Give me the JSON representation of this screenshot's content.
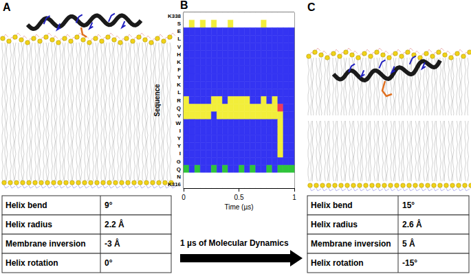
{
  "panels": [
    {
      "label": "A",
      "table": [
        [
          "Helix bend",
          "9°"
        ],
        [
          "Helix radius",
          "2.2 Å"
        ],
        [
          "Membrane inversion",
          "-3 Å"
        ],
        [
          "Helix rotation",
          "0°"
        ]
      ]
    },
    {
      "label": "C",
      "table": [
        [
          "Helix bend",
          "15°"
        ],
        [
          "Helix radius",
          "2.6 Å"
        ],
        [
          "Membrane inversion",
          "5 Å"
        ],
        [
          "Helix rotation",
          "-15°"
        ]
      ]
    }
  ],
  "arrow_text": "1 µs of Molecular Dynamics",
  "chart_data": {
    "type": "heatmap",
    "panel_label": "B",
    "x_label": "Time (µs)",
    "y_label": "Sequence",
    "categories": [
      "K338",
      "S",
      "E",
      "L",
      "V",
      "H",
      "K",
      "F",
      "Y",
      "K",
      "L",
      "R",
      "Q",
      "V",
      "W",
      "I",
      "Y",
      "Y",
      "I",
      "G",
      "Q",
      "N",
      "K316"
    ],
    "bins": [
      0,
      0.05,
      0.1,
      0.15,
      0.2,
      0.25,
      0.3,
      0.35,
      0.4,
      0.45,
      0.5,
      0.55,
      0.6,
      0.65,
      0.7,
      0.75,
      0.8,
      0.85,
      0.9,
      0.95,
      1
    ],
    "colors": [
      "#ffffff",
      "#3434f2",
      "#f2ee3a",
      "#2fc43a",
      "#ee3a5a"
    ],
    "cells": [
      [
        0,
        0,
        0,
        0,
        0,
        0,
        0,
        0,
        0,
        0,
        0,
        0,
        0,
        0,
        0,
        0,
        0,
        0,
        0,
        0
      ],
      [
        0,
        2,
        0,
        2,
        0,
        2,
        0,
        0,
        2,
        0,
        0,
        0,
        0,
        0,
        2,
        0,
        0,
        0,
        0,
        0
      ],
      [
        1,
        1,
        1,
        1,
        1,
        1,
        1,
        1,
        1,
        1,
        1,
        1,
        1,
        1,
        1,
        1,
        1,
        1,
        1,
        1
      ],
      [
        1,
        1,
        1,
        1,
        1,
        1,
        1,
        1,
        1,
        1,
        1,
        1,
        1,
        1,
        1,
        1,
        1,
        1,
        1,
        1
      ],
      [
        1,
        1,
        1,
        1,
        1,
        1,
        1,
        1,
        1,
        1,
        1,
        1,
        1,
        1,
        1,
        1,
        1,
        1,
        1,
        1
      ],
      [
        1,
        1,
        1,
        1,
        1,
        1,
        1,
        1,
        1,
        1,
        1,
        1,
        1,
        1,
        1,
        1,
        1,
        1,
        1,
        1
      ],
      [
        1,
        1,
        1,
        1,
        1,
        1,
        1,
        1,
        1,
        1,
        1,
        1,
        1,
        1,
        1,
        1,
        1,
        1,
        1,
        1
      ],
      [
        1,
        1,
        1,
        1,
        1,
        1,
        1,
        1,
        1,
        1,
        1,
        1,
        1,
        1,
        1,
        1,
        1,
        1,
        1,
        1
      ],
      [
        1,
        1,
        1,
        1,
        1,
        1,
        1,
        1,
        1,
        1,
        1,
        1,
        1,
        1,
        1,
        1,
        1,
        1,
        1,
        1
      ],
      [
        1,
        1,
        1,
        1,
        1,
        1,
        1,
        1,
        1,
        1,
        1,
        1,
        1,
        1,
        1,
        1,
        1,
        1,
        1,
        1
      ],
      [
        1,
        1,
        1,
        1,
        1,
        1,
        1,
        1,
        1,
        1,
        1,
        1,
        1,
        1,
        1,
        1,
        1,
        1,
        1,
        1
      ],
      [
        2,
        1,
        1,
        1,
        1,
        2,
        2,
        1,
        2,
        2,
        2,
        2,
        1,
        1,
        2,
        1,
        2,
        1,
        1,
        1
      ],
      [
        2,
        2,
        2,
        2,
        2,
        2,
        2,
        2,
        2,
        2,
        2,
        2,
        2,
        2,
        2,
        2,
        2,
        4,
        1,
        1
      ],
      [
        2,
        2,
        2,
        2,
        2,
        1,
        2,
        2,
        2,
        2,
        2,
        2,
        2,
        2,
        2,
        2,
        2,
        2,
        1,
        1
      ],
      [
        1,
        1,
        1,
        1,
        1,
        1,
        1,
        1,
        1,
        1,
        1,
        1,
        1,
        1,
        1,
        1,
        1,
        2,
        1,
        1
      ],
      [
        1,
        1,
        1,
        1,
        1,
        1,
        1,
        1,
        1,
        1,
        1,
        1,
        1,
        1,
        1,
        1,
        1,
        2,
        1,
        1
      ],
      [
        1,
        1,
        1,
        1,
        1,
        1,
        1,
        1,
        1,
        1,
        1,
        1,
        1,
        1,
        1,
        1,
        1,
        2,
        1,
        1
      ],
      [
        1,
        1,
        1,
        1,
        1,
        1,
        1,
        1,
        1,
        1,
        1,
        1,
        1,
        1,
        1,
        1,
        1,
        2,
        1,
        1
      ],
      [
        1,
        1,
        1,
        1,
        1,
        1,
        1,
        1,
        1,
        1,
        1,
        1,
        1,
        1,
        1,
        1,
        1,
        2,
        1,
        1
      ],
      [
        1,
        1,
        1,
        1,
        1,
        1,
        1,
        1,
        1,
        1,
        1,
        1,
        1,
        1,
        1,
        1,
        1,
        1,
        1,
        1
      ],
      [
        3,
        1,
        3,
        1,
        1,
        3,
        1,
        3,
        1,
        1,
        3,
        1,
        3,
        1,
        1,
        3,
        1,
        3,
        3,
        3
      ],
      [
        0,
        0,
        0,
        0,
        0,
        0,
        0,
        0,
        0,
        0,
        0,
        0,
        0,
        0,
        0,
        0,
        0,
        0,
        0,
        0
      ],
      [
        0,
        0,
        0,
        0,
        0,
        0,
        0,
        0,
        0,
        0,
        0,
        0,
        0,
        0,
        0,
        0,
        0,
        0,
        0,
        0
      ]
    ],
    "xlim": [
      0,
      1
    ],
    "xticks": [
      0,
      0.5,
      1
    ]
  }
}
